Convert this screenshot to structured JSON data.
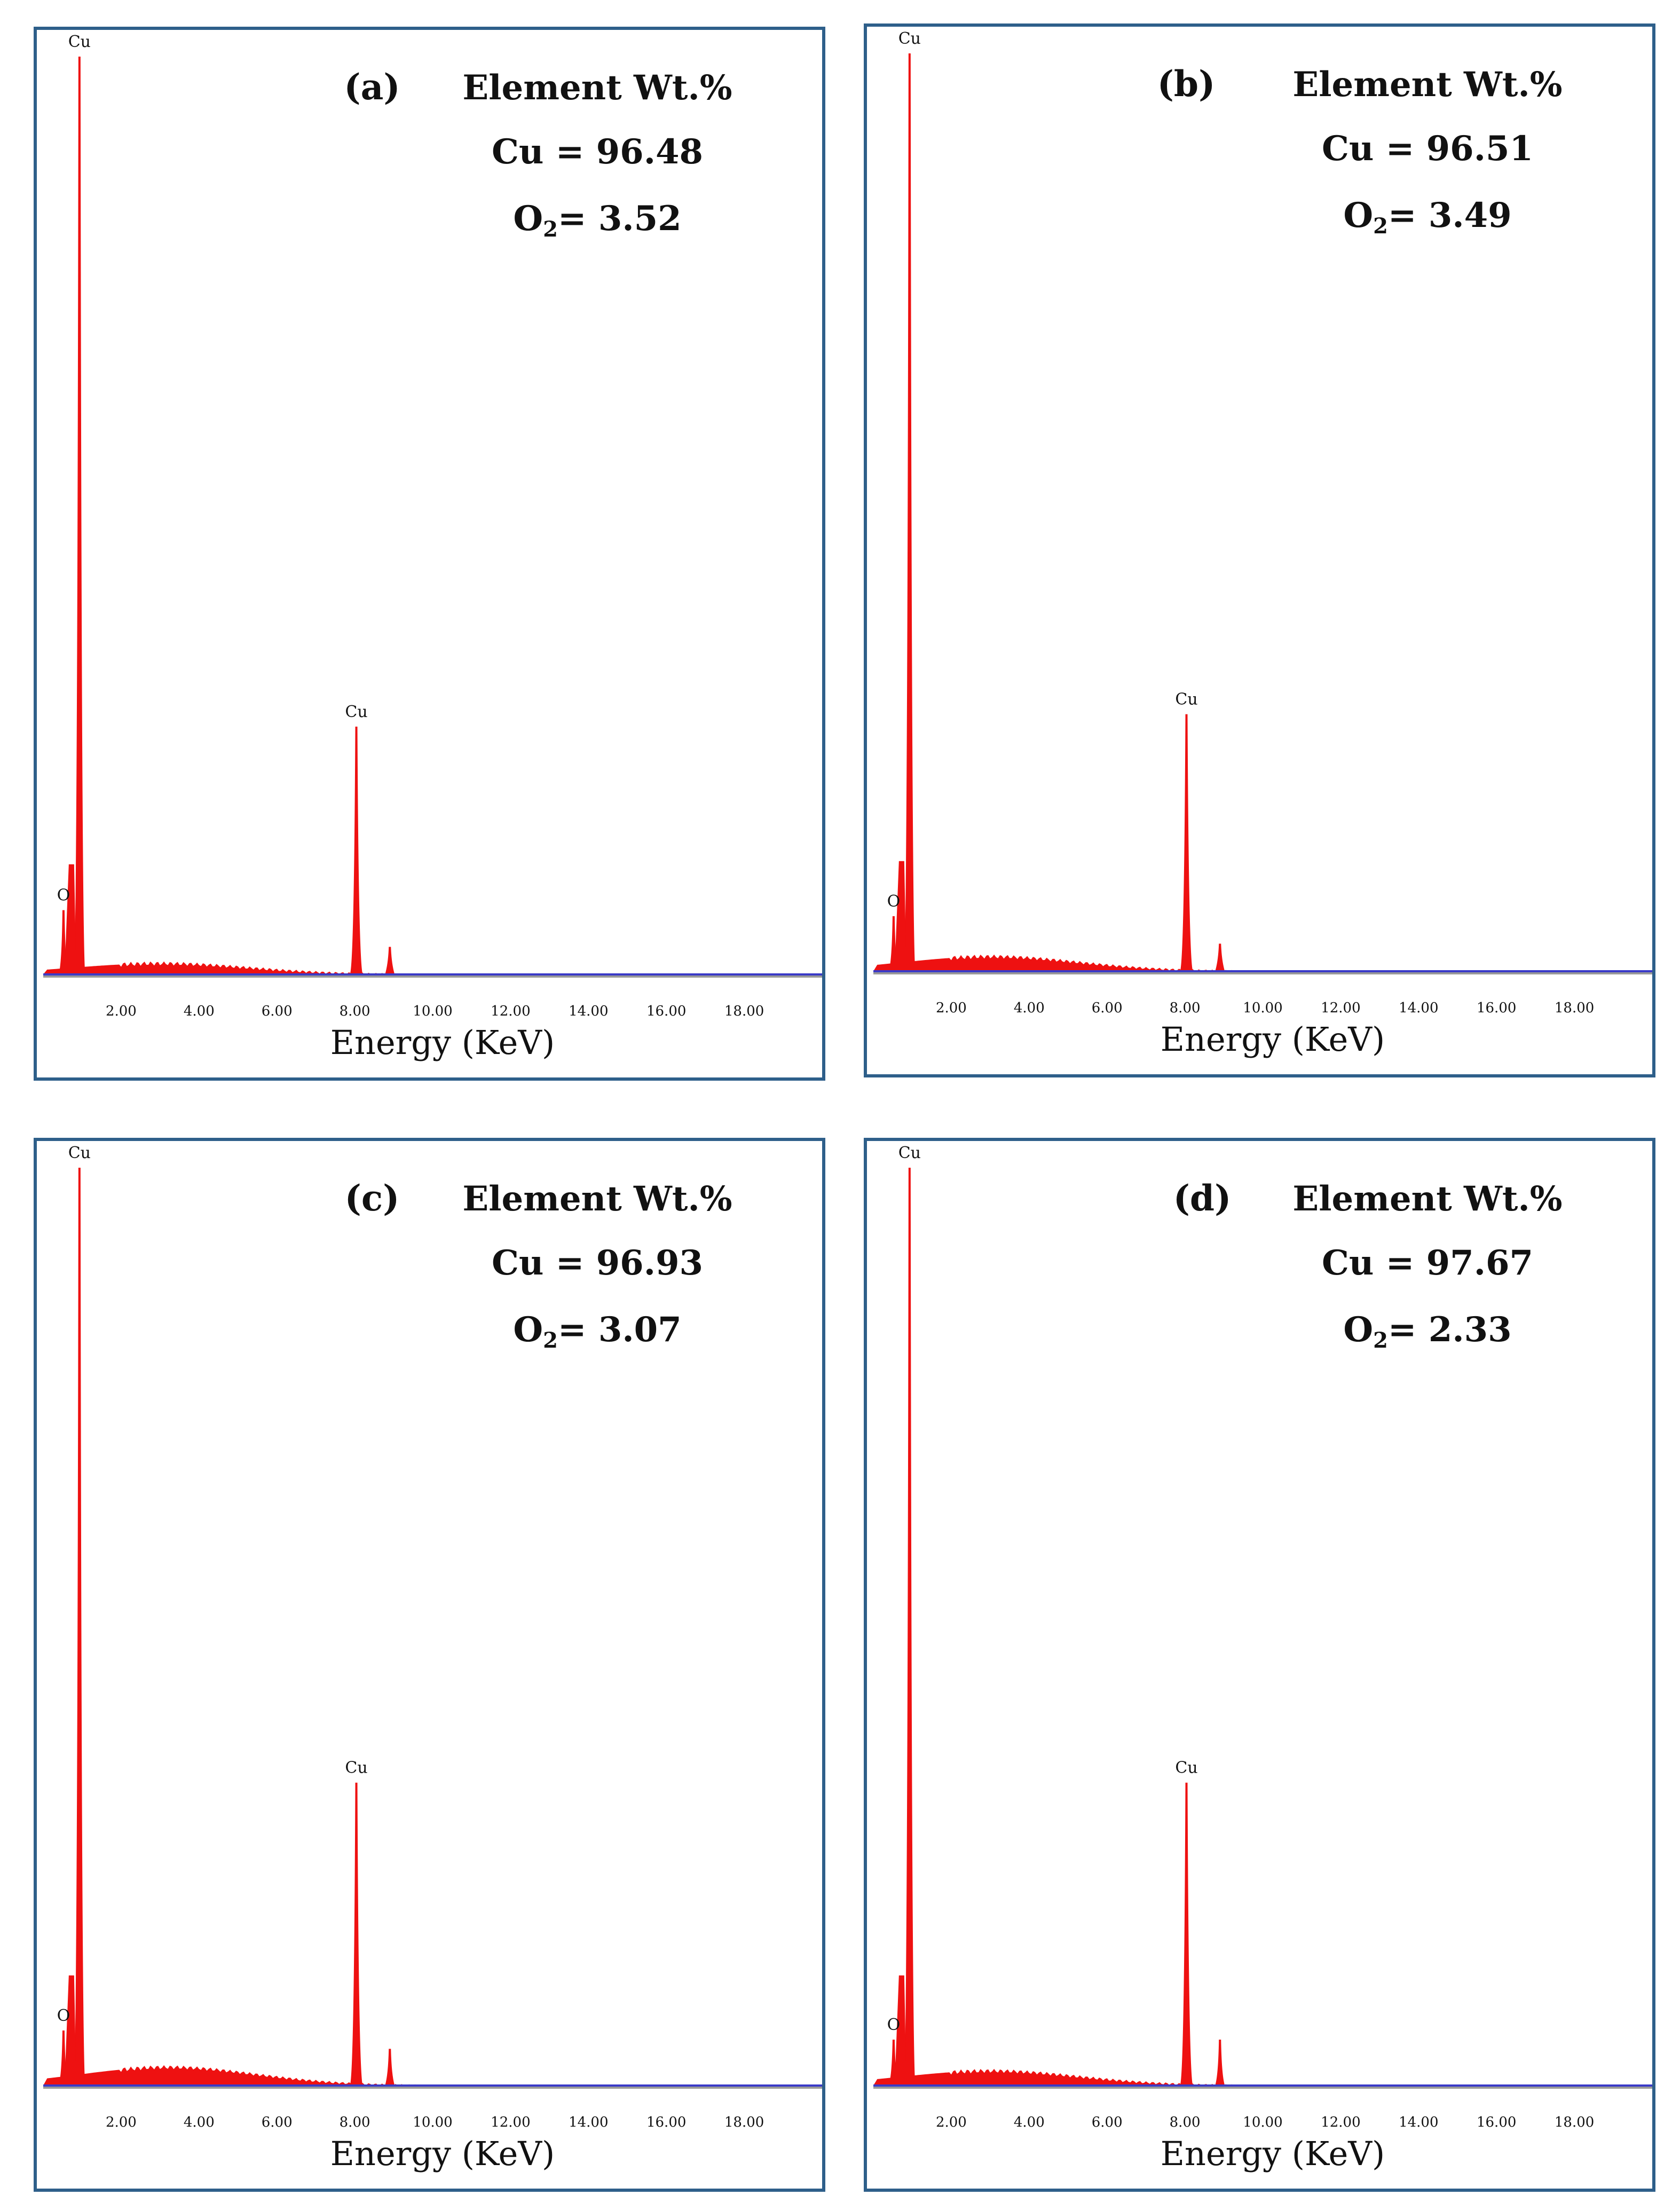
{
  "figure": {
    "panels": [
      {
        "id": "a",
        "label": "(a)",
        "header": "Element Wt.%",
        "cu_line": "Cu = 96.48",
        "o2_prefix": "O",
        "o2_sub": "2",
        "o2_value": "= 3.52"
      },
      {
        "id": "b",
        "label": "(b)",
        "header": "Element Wt.%",
        "cu_line": "Cu = 96.51",
        "o2_prefix": "O",
        "o2_sub": "2",
        "o2_value": "= 3.49"
      },
      {
        "id": "c",
        "label": "(c)",
        "header": "Element Wt.%",
        "cu_line": "Cu = 96.93",
        "o2_prefix": "O",
        "o2_sub": "2",
        "o2_value": "= 3.07"
      },
      {
        "id": "d",
        "label": "(d)",
        "header": "Element Wt.%",
        "cu_line": "Cu = 97.67",
        "o2_prefix": "O",
        "o2_sub": "2",
        "o2_value": "= 2.33"
      }
    ]
  },
  "colors": {
    "spectrum": "#ee1111",
    "baseline": "#3a3ac8",
    "border": "#2e5f8a"
  },
  "chart_data": [
    {
      "type": "area",
      "panel": "a",
      "xlabel": "Energy (KeV)",
      "xlim": [
        0,
        20
      ],
      "ylim": [
        0,
        100
      ],
      "x_ticks": [
        2,
        4,
        6,
        8,
        10,
        12,
        14,
        16,
        18
      ],
      "x_tick_labels": [
        "2.00",
        "4.00",
        "6.00",
        "8.00",
        "10.00",
        "12.00",
        "14.00",
        "16.00",
        "18.00"
      ],
      "peaks": [
        {
          "label": "O",
          "energy": 0.52,
          "height": 7
        },
        {
          "label": "Cu",
          "energy": 0.93,
          "height": 100
        },
        {
          "label": "Cu",
          "energy": 8.04,
          "height": 27
        },
        {
          "label": "",
          "energy": 8.9,
          "height": 3
        }
      ],
      "background_hump": {
        "center": 3.0,
        "height": 1.2
      }
    },
    {
      "type": "area",
      "panel": "b",
      "xlabel": "Energy (KeV)",
      "xlim": [
        0,
        20
      ],
      "ylim": [
        0,
        100
      ],
      "x_ticks": [
        2,
        4,
        6,
        8,
        10,
        12,
        14,
        16,
        18
      ],
      "x_tick_labels": [
        "2.00",
        "4.00",
        "6.00",
        "8.00",
        "10.00",
        "12.00",
        "14.00",
        "16.00",
        "18.00"
      ],
      "peaks": [
        {
          "label": "O",
          "energy": 0.52,
          "height": 6
        },
        {
          "label": "Cu",
          "energy": 0.93,
          "height": 100
        },
        {
          "label": "Cu",
          "energy": 8.04,
          "height": 28
        },
        {
          "label": "",
          "energy": 8.9,
          "height": 3
        }
      ],
      "background_hump": {
        "center": 3.0,
        "height": 1.6
      }
    },
    {
      "type": "area",
      "panel": "c",
      "xlabel": "Energy (KeV)",
      "xlim": [
        0,
        20
      ],
      "ylim": [
        0,
        100
      ],
      "x_ticks": [
        2,
        4,
        6,
        8,
        10,
        12,
        14,
        16,
        18
      ],
      "x_tick_labels": [
        "2.00",
        "4.00",
        "6.00",
        "8.00",
        "10.00",
        "12.00",
        "14.00",
        "16.00",
        "18.00"
      ],
      "peaks": [
        {
          "label": "O",
          "energy": 0.52,
          "height": 6
        },
        {
          "label": "Cu",
          "energy": 0.93,
          "height": 100
        },
        {
          "label": "Cu",
          "energy": 8.04,
          "height": 33
        },
        {
          "label": "",
          "energy": 8.9,
          "height": 4
        }
      ],
      "background_hump": {
        "center": 3.2,
        "height": 2.0
      }
    },
    {
      "type": "area",
      "panel": "d",
      "xlabel": "Energy (KeV)",
      "xlim": [
        0,
        20
      ],
      "ylim": [
        0,
        100
      ],
      "x_ticks": [
        2,
        4,
        6,
        8,
        10,
        12,
        14,
        16,
        18
      ],
      "x_tick_labels": [
        "2.00",
        "4.00",
        "6.00",
        "8.00",
        "10.00",
        "12.00",
        "14.00",
        "16.00",
        "18.00"
      ],
      "peaks": [
        {
          "label": "O",
          "energy": 0.52,
          "height": 5
        },
        {
          "label": "Cu",
          "energy": 0.93,
          "height": 100
        },
        {
          "label": "Cu",
          "energy": 8.04,
          "height": 33
        },
        {
          "label": "",
          "energy": 8.9,
          "height": 5
        }
      ],
      "background_hump": {
        "center": 3.0,
        "height": 1.6
      }
    }
  ]
}
